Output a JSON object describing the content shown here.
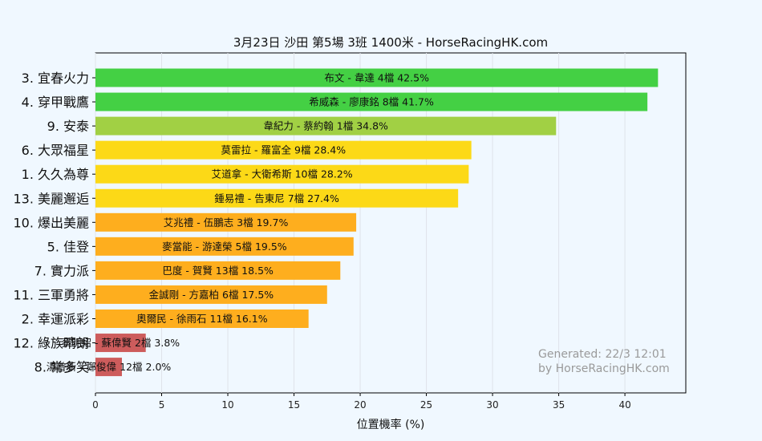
{
  "chart_data": {
    "type": "bar",
    "orientation": "horizontal",
    "title": "3月23日  沙田  第5場  3班  1400米 - HorseRacingHK.com",
    "xlabel": "位置機率 (%)",
    "ylabel": "",
    "xlim": [
      0,
      44.6
    ],
    "xticks": [
      0,
      5,
      10,
      15,
      20,
      25,
      30,
      35,
      40
    ],
    "grid": true,
    "categories": [
      "3. 宜春火力",
      "4. 穿甲戰鷹",
      "9. 安泰",
      "6. 大眾福星",
      "1. 久久為尊",
      "13. 美麗邂逅",
      "10. 爆出美麗",
      "5. 佳登",
      "7. 實力派",
      "11. 三軍勇將",
      "2. 幸運派彩",
      "12. 綠族晴朗",
      "8. 常多笑"
    ],
    "values": [
      42.5,
      41.7,
      34.8,
      28.4,
      28.2,
      27.4,
      19.7,
      19.5,
      18.5,
      17.5,
      16.1,
      3.8,
      2.0
    ],
    "bar_labels": [
      "布文 - 韋達 4檔  42.5%",
      "希威森 - 廖康銘 8檔  41.7%",
      "韋紀力 - 蔡約翰 1檔  34.8%",
      "莫雷拉 - 羅富全 9檔  28.4%",
      "艾道拿 - 大衛希斯 10檔  28.2%",
      "鍾易禮 - 告東尼 7檔  27.4%",
      "艾兆禮 - 伍鵬志 3檔  19.7%",
      "麥當能 - 游達榮 5檔  19.5%",
      "巴度 - 賀賢 13檔  18.5%",
      "金誠剛 - 方嘉柏 6檔  17.5%",
      "奧爾民 - 徐雨石 11檔  16.1%",
      "蔡明紹 - 蘇偉賢 2檔  3.8%",
      "湯普新 - 鄭俊偉 12檔  2.0%"
    ],
    "colors": [
      "#44d044",
      "#44d044",
      "#a1d044",
      "#fcd917",
      "#fcd917",
      "#fcd917",
      "#feae1e",
      "#feae1e",
      "#feae1e",
      "#feae1e",
      "#feae1e",
      "#cd5c5c",
      "#cd5c5c"
    ],
    "watermark": [
      "Generated: 22/3 12:01",
      "by HorseRacingHK.com"
    ]
  }
}
